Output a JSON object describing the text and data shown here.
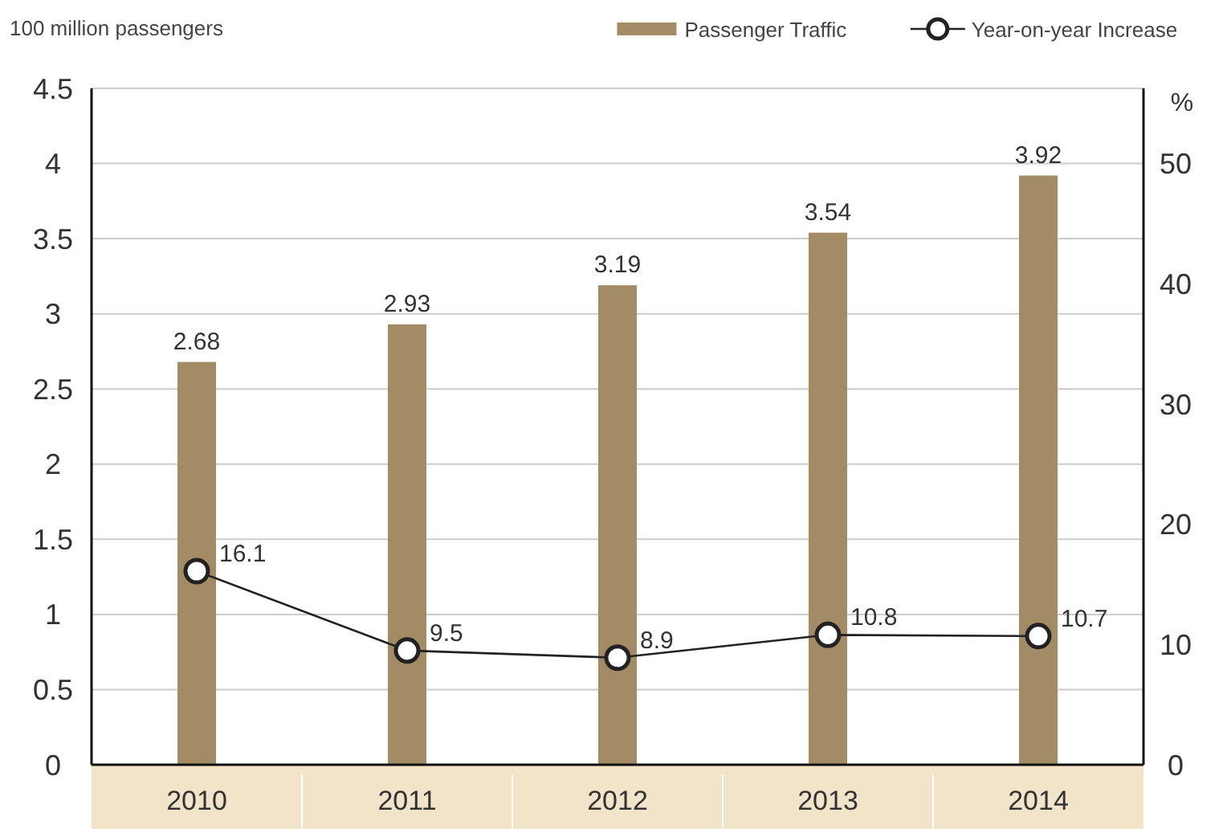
{
  "chart_data": {
    "type": "bar",
    "ylabel": "100 million passengers",
    "y2label": "%",
    "categories": [
      "2010",
      "2011",
      "2012",
      "2013",
      "2014"
    ],
    "series": [
      {
        "name": "Passenger Traffic",
        "color": "#a38b66",
        "values": [
          2.68,
          2.93,
          3.19,
          3.54,
          3.92
        ]
      },
      {
        "name": "Year-on-year Increase",
        "type": "line",
        "axis": "y2",
        "color": "#222222",
        "marker": "circle",
        "values": [
          16.1,
          9.5,
          8.9,
          10.8,
          10.7
        ]
      }
    ],
    "ylim": [
      0,
      4.5
    ],
    "yticks": [
      0,
      0.5,
      1,
      1.5,
      2,
      2.5,
      3,
      3.5,
      4,
      4.5
    ],
    "y2lim": [
      0,
      56.25
    ],
    "y2ticks": [
      0,
      10,
      20,
      30,
      40,
      50
    ],
    "grid": "y",
    "legend": "top right",
    "data_labels": true
  }
}
